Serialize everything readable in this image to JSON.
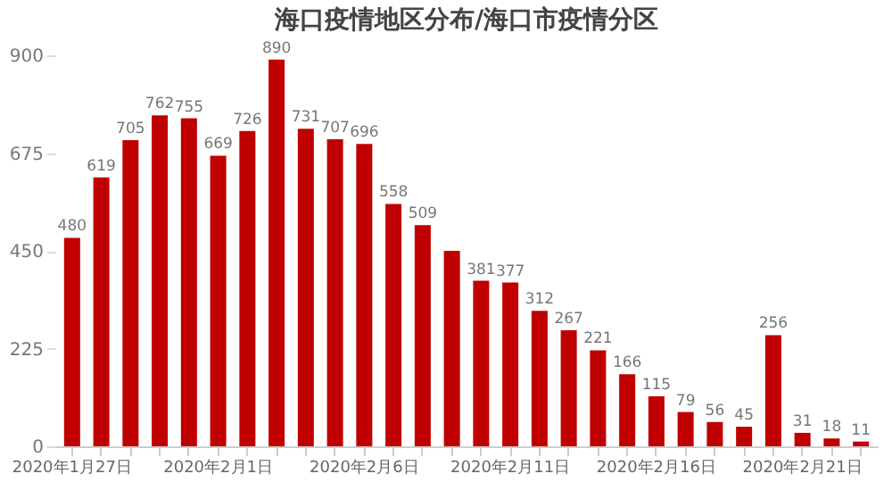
{
  "chart_data": {
    "type": "bar",
    "title": "海口疫情地区分布/海口市疫情分区",
    "categories": [
      "2020年1月27日",
      null,
      null,
      null,
      null,
      "2020年2月1日",
      null,
      null,
      null,
      null,
      "2020年2月6日",
      null,
      null,
      null,
      null,
      "2020年2月11日",
      null,
      null,
      null,
      null,
      "2020年2月16日",
      null,
      null,
      null,
      null,
      "2020年2月21日",
      null,
      null
    ],
    "values": [
      480,
      619,
      705,
      762,
      755,
      669,
      726,
      890,
      731,
      707,
      696,
      558,
      509,
      450,
      381,
      377,
      312,
      267,
      221,
      166,
      115,
      79,
      56,
      45,
      256,
      31,
      18,
      11
    ],
    "value_labels": [
      "480",
      "619",
      "705",
      "762",
      "755",
      "669",
      "726",
      "890",
      "731",
      "707",
      "696",
      "558",
      "509",
      null,
      "381",
      "377",
      "312",
      "267",
      "221",
      "166",
      "115",
      "79",
      "56",
      "45",
      "256",
      "31",
      "18",
      "11"
    ],
    "color": "#c00000",
    "ylim": [
      0,
      900
    ],
    "yticks": [
      0,
      225,
      450,
      675,
      900
    ],
    "grid": false
  }
}
